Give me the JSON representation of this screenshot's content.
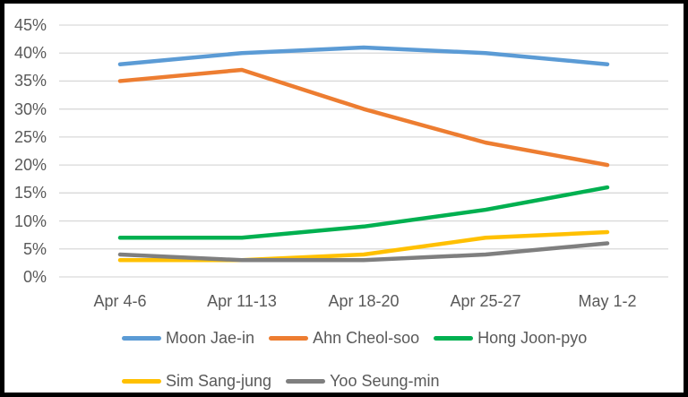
{
  "frame": {
    "border_color": "#000000",
    "background_color": "#FFFFFF"
  },
  "chart_data": {
    "type": "line",
    "title": "",
    "categories": [
      "Apr 4-6",
      "Apr 11-13",
      "Apr 18-20",
      "Apr 25-27",
      "May 1-2"
    ],
    "series": [
      {
        "name": "Moon Jae-in",
        "color": "#5B9BD5",
        "values": [
          38,
          40,
          41,
          40,
          38
        ]
      },
      {
        "name": "Ahn Cheol-soo",
        "color": "#ED7D31",
        "values": [
          35,
          37,
          30,
          24,
          20
        ]
      },
      {
        "name": "Hong Joon-pyo",
        "color": "#00B050",
        "values": [
          7,
          7,
          9,
          12,
          16
        ]
      },
      {
        "name": "Sim Sang-jung",
        "color": "#FFC000",
        "values": [
          3,
          3,
          4,
          7,
          8
        ]
      },
      {
        "name": "Yoo Seung-min",
        "color": "#7F7F7F",
        "values": [
          4,
          3,
          3,
          4,
          6
        ]
      }
    ],
    "y_axis": {
      "min": 0,
      "max": 45,
      "step": 5,
      "unit": "%",
      "tick_labels": [
        "0%",
        "5%",
        "10%",
        "15%",
        "20%",
        "25%",
        "30%",
        "35%",
        "40%",
        "45%"
      ]
    },
    "grid": true,
    "gridline_color": "#D9D9D9",
    "axis_label_color": "#595959",
    "legend_position": "bottom",
    "legend_break_after": 3
  }
}
